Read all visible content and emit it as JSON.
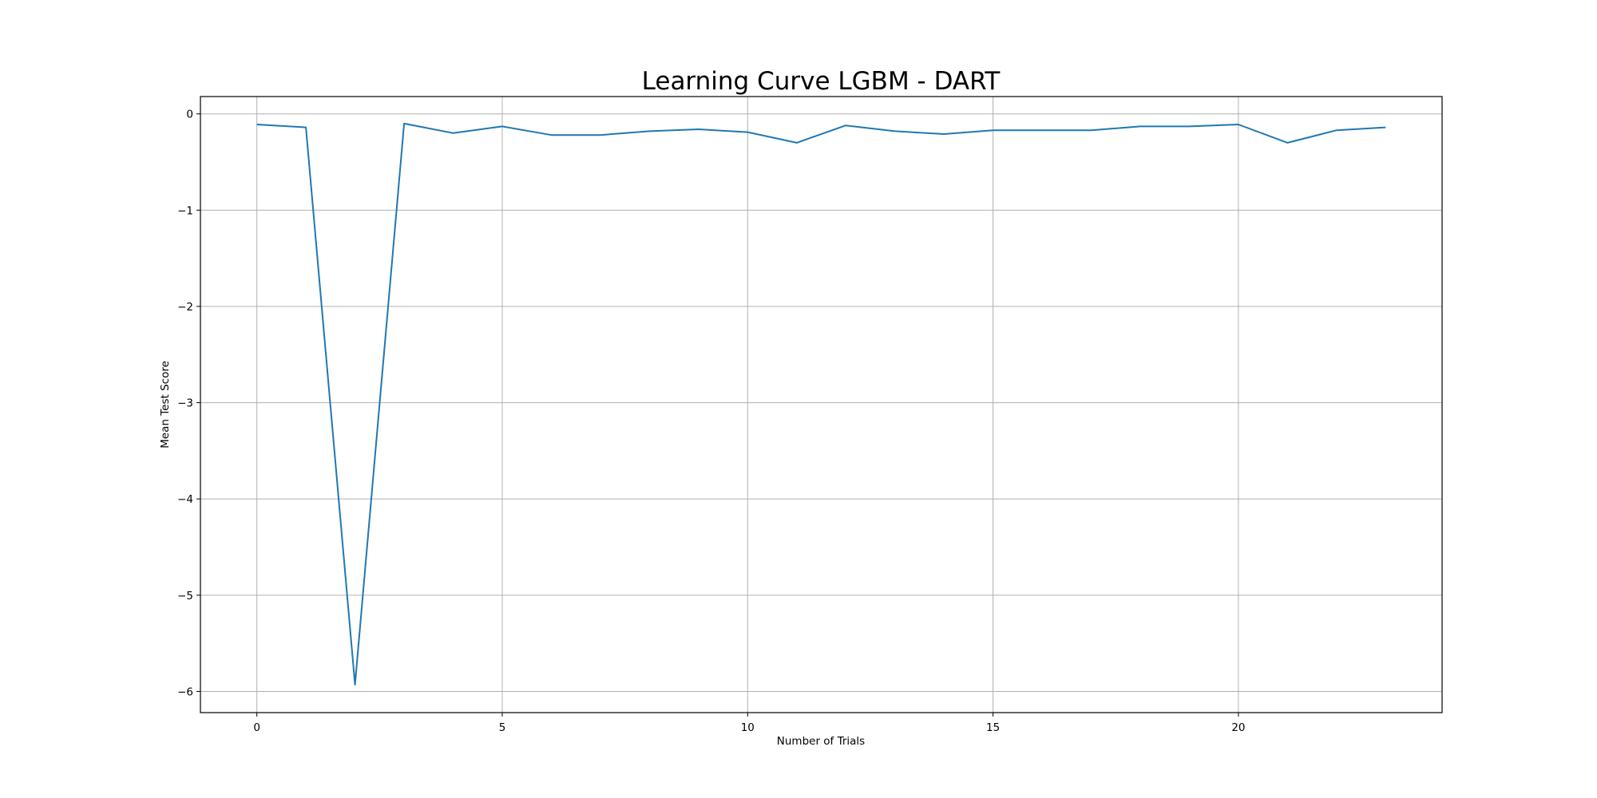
{
  "chart_data": {
    "type": "line",
    "title": "Learning Curve LGBM - DART",
    "xlabel": "Number of Trials",
    "ylabel": "Mean Test Score",
    "xlim": [
      -1.15,
      24.15
    ],
    "ylim": [
      -6.22,
      0.18
    ],
    "xticks": [
      0,
      5,
      10,
      15,
      20
    ],
    "yticks": [
      0,
      -1,
      -2,
      -3,
      -4,
      -5,
      -6
    ],
    "xtick_labels": [
      "0",
      "5",
      "10",
      "15",
      "20"
    ],
    "ytick_labels": [
      "0",
      "−1",
      "−2",
      "−3",
      "−4",
      "−5",
      "−6"
    ],
    "grid": true,
    "series": [
      {
        "color": "#1f77b4",
        "x": [
          0,
          1,
          2,
          3,
          4,
          5,
          6,
          7,
          8,
          9,
          10,
          11,
          12,
          13,
          14,
          15,
          16,
          17,
          18,
          19,
          20,
          21,
          22,
          23
        ],
        "y": [
          -0.11,
          -0.14,
          -5.93,
          -0.1,
          -0.2,
          -0.13,
          -0.22,
          -0.22,
          -0.18,
          -0.16,
          -0.19,
          -0.3,
          -0.12,
          -0.18,
          -0.21,
          -0.17,
          -0.17,
          -0.17,
          -0.13,
          -0.13,
          -0.11,
          -0.3,
          -0.17,
          -0.14
        ]
      }
    ]
  }
}
